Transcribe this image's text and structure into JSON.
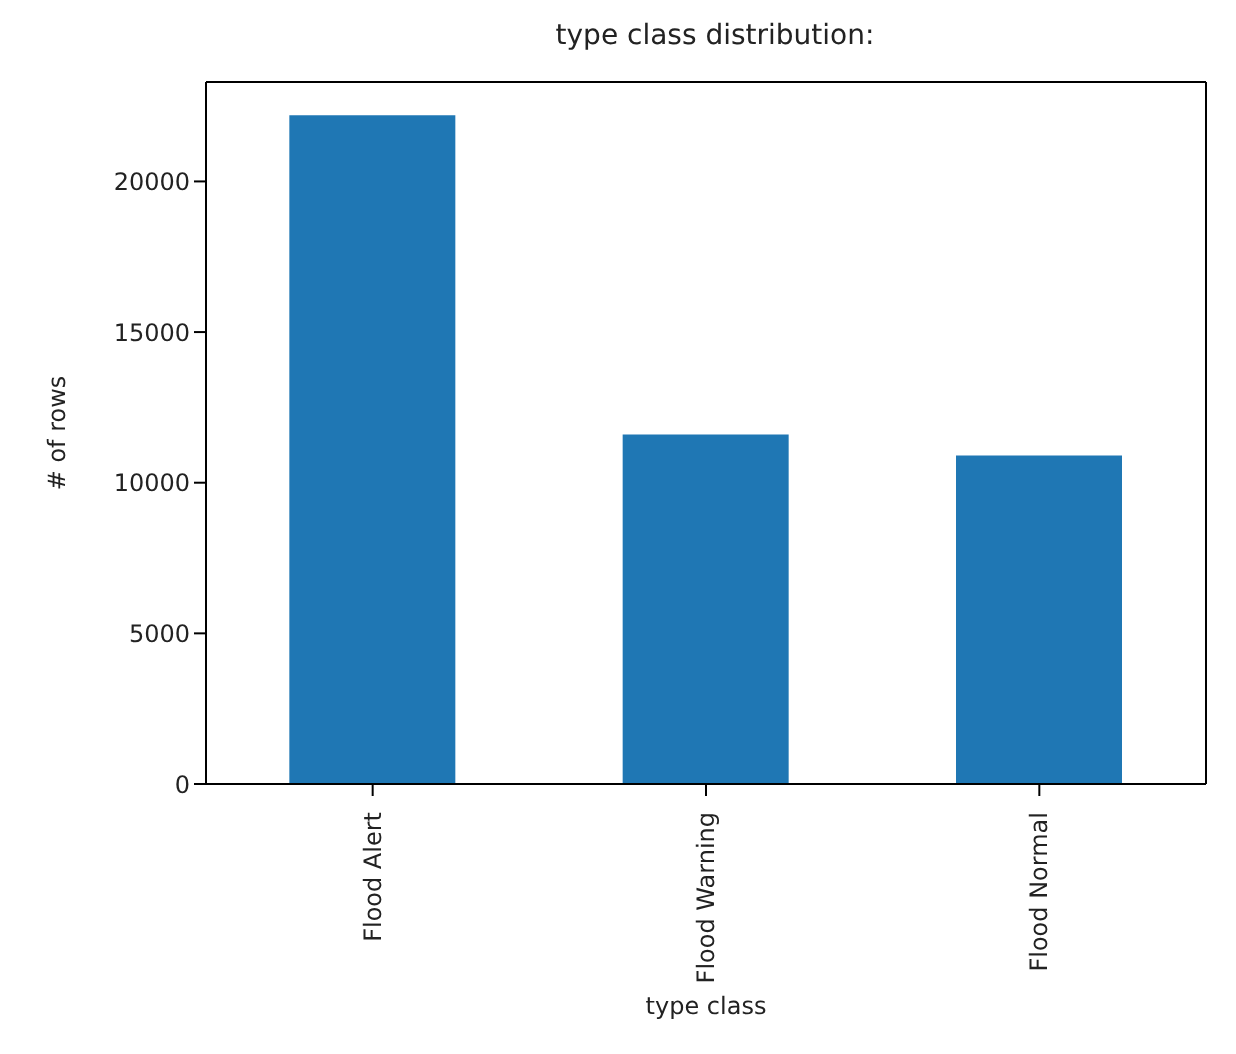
{
  "chart_data": {
    "type": "bar",
    "title": "type class distribution:",
    "xlabel": "type class",
    "ylabel": "# of rows",
    "categories": [
      "Flood Alert",
      "Flood Warning",
      "Flood Normal"
    ],
    "values": [
      22200,
      11600,
      10900
    ],
    "color": "#1f77b4",
    "ylim": [
      0,
      23300
    ],
    "yticks": [
      0,
      5000,
      10000,
      15000,
      20000
    ],
    "grid": false
  }
}
